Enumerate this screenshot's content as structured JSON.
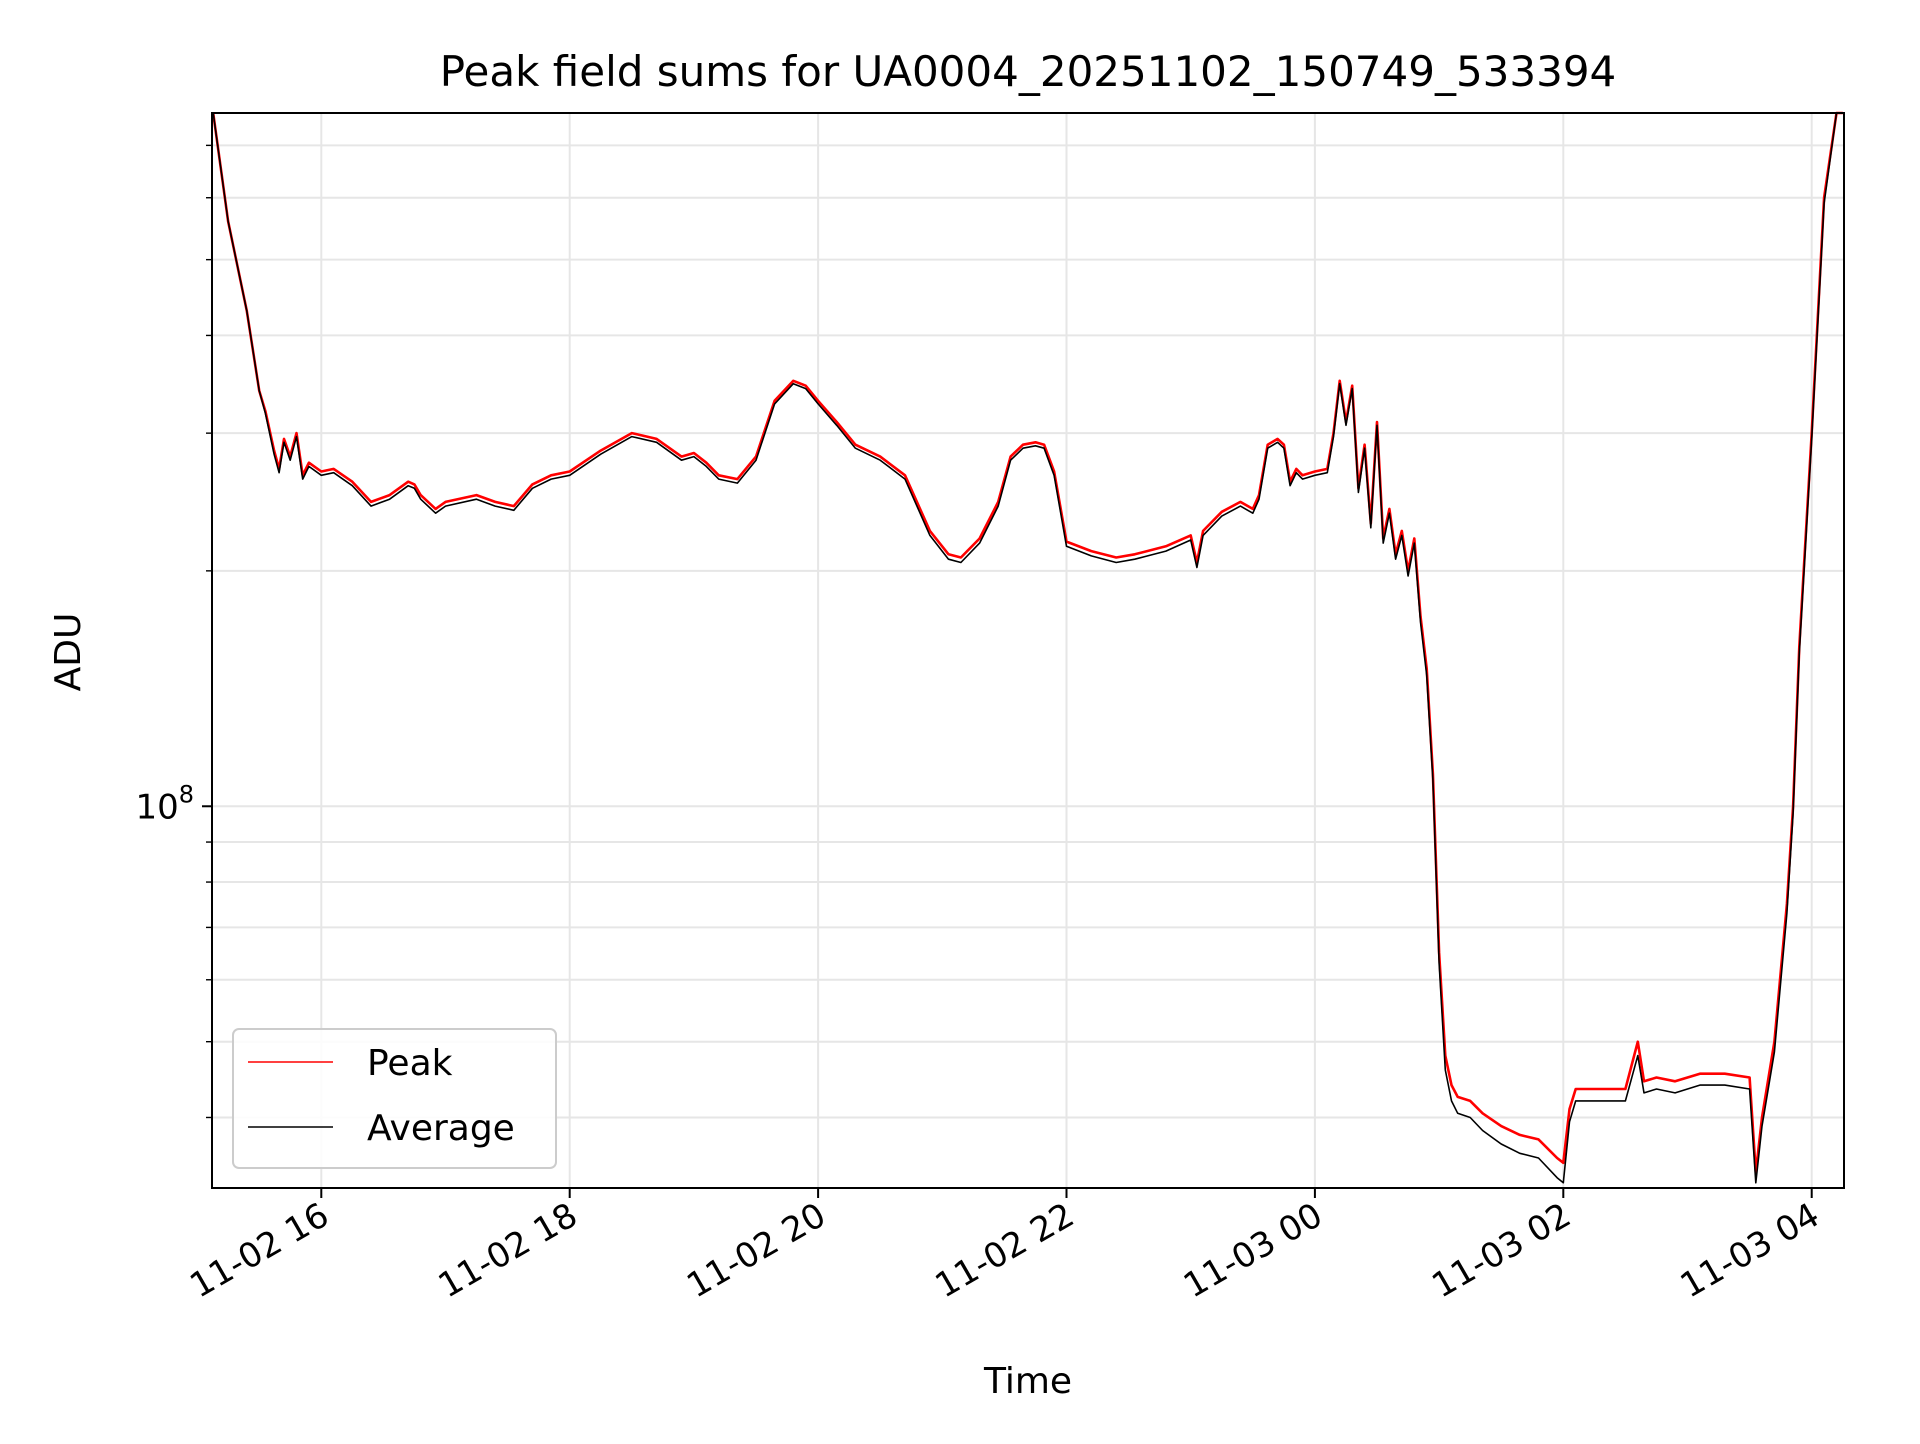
{
  "chart_data": {
    "type": "line",
    "title": "Peak field sums for UA0004_20251102_150749_533394",
    "xlabel": "Time",
    "ylabel": "ADU",
    "yscale": "log",
    "ylim": [
      32500000,
      770000000
    ],
    "xlim": [
      15.12,
      28.26
    ],
    "grid": true,
    "legend_position": "lower-left",
    "x_unit": "hours since 2025-11-02 00:00",
    "x_ticks": [
      {
        "value": 16,
        "label": "11-02 16"
      },
      {
        "value": 18,
        "label": "11-02 18"
      },
      {
        "value": 20,
        "label": "11-02 20"
      },
      {
        "value": 22,
        "label": "11-02 22"
      },
      {
        "value": 24,
        "label": "11-03 00"
      },
      {
        "value": 26,
        "label": "11-03 02"
      },
      {
        "value": 28,
        "label": "11-03 04"
      }
    ],
    "y_tick_labels": [
      {
        "value": 100000000,
        "base": "10",
        "exp": "8"
      }
    ],
    "x": [
      15.13,
      15.25,
      15.4,
      15.5,
      15.55,
      15.62,
      15.66,
      15.7,
      15.75,
      15.8,
      15.85,
      15.9,
      16.0,
      16.1,
      16.25,
      16.4,
      16.55,
      16.7,
      16.75,
      16.8,
      16.92,
      17.0,
      17.25,
      17.4,
      17.55,
      17.7,
      17.85,
      18.0,
      18.25,
      18.5,
      18.7,
      18.9,
      19.0,
      19.1,
      19.2,
      19.35,
      19.5,
      19.65,
      19.8,
      19.9,
      20.0,
      20.15,
      20.3,
      20.5,
      20.7,
      20.9,
      21.05,
      21.15,
      21.3,
      21.45,
      21.55,
      21.65,
      21.75,
      21.82,
      21.9,
      22.0,
      22.2,
      22.4,
      22.55,
      22.8,
      23.0,
      23.05,
      23.1,
      23.25,
      23.4,
      23.5,
      23.55,
      23.62,
      23.7,
      23.75,
      23.8,
      23.85,
      23.9,
      24.0,
      24.1,
      24.15,
      24.2,
      24.25,
      24.3,
      24.35,
      24.4,
      24.45,
      24.5,
      24.55,
      24.6,
      24.65,
      24.7,
      24.75,
      24.8,
      24.85,
      24.9,
      24.95,
      25.0,
      25.05,
      25.1,
      25.15,
      25.25,
      25.35,
      25.5,
      25.65,
      25.8,
      25.95,
      26.0,
      26.05,
      26.1,
      26.3,
      26.5,
      26.6,
      26.65,
      26.75,
      26.9,
      27.1,
      27.3,
      27.5,
      27.55,
      27.6,
      27.7,
      27.8,
      27.85,
      27.9,
      28.0,
      28.1,
      28.2,
      28.25
    ],
    "series": [
      {
        "name": "Peak",
        "color": "#ff0000",
        "values": [
          770000000,
          560000000,
          430000000,
          340000000,
          320000000,
          285000000,
          270000000,
          295000000,
          280000000,
          300000000,
          265000000,
          275000000,
          268000000,
          270000000,
          260000000,
          245000000,
          250000000,
          260000000,
          258000000,
          250000000,
          240000000,
          245000000,
          250000000,
          245000000,
          242000000,
          258000000,
          265000000,
          268000000,
          285000000,
          300000000,
          295000000,
          280000000,
          283000000,
          275000000,
          265000000,
          262000000,
          280000000,
          330000000,
          350000000,
          345000000,
          330000000,
          310000000,
          290000000,
          280000000,
          265000000,
          225000000,
          210000000,
          208000000,
          220000000,
          245000000,
          280000000,
          290000000,
          292000000,
          290000000,
          268000000,
          218000000,
          212000000,
          208000000,
          210000000,
          215000000,
          222000000,
          205000000,
          225000000,
          238000000,
          245000000,
          240000000,
          250000000,
          290000000,
          295000000,
          290000000,
          260000000,
          270000000,
          265000000,
          268000000,
          270000000,
          300000000,
          350000000,
          310000000,
          345000000,
          255000000,
          290000000,
          230000000,
          310000000,
          220000000,
          240000000,
          210000000,
          225000000,
          200000000,
          220000000,
          175000000,
          150000000,
          110000000,
          65000000,
          48000000,
          44000000,
          42500000,
          42000000,
          40500000,
          39000000,
          38000000,
          37500000,
          35500000,
          35000000,
          41000000,
          43500000,
          43500000,
          43500000,
          50000000,
          44500000,
          45000000,
          44500000,
          45500000,
          45500000,
          45000000,
          34000000,
          40000000,
          50000000,
          75000000,
          100000000,
          160000000,
          300000000,
          600000000,
          770000000,
          770000000
        ]
      },
      {
        "name": "Average",
        "color": "#000000",
        "values": [
          770000000,
          560000000,
          430000000,
          340000000,
          318000000,
          282000000,
          267000000,
          292000000,
          277000000,
          297000000,
          262000000,
          272000000,
          265000000,
          267000000,
          257000000,
          242000000,
          247000000,
          257000000,
          255000000,
          247000000,
          237000000,
          242000000,
          247000000,
          242000000,
          239000000,
          255000000,
          262000000,
          265000000,
          282000000,
          297000000,
          292000000,
          277000000,
          280000000,
          272000000,
          262000000,
          259000000,
          277000000,
          327000000,
          347000000,
          342000000,
          327000000,
          307000000,
          287000000,
          277000000,
          262000000,
          222000000,
          207000000,
          205000000,
          217000000,
          242000000,
          277000000,
          287000000,
          289000000,
          287000000,
          265000000,
          215000000,
          209000000,
          205000000,
          207000000,
          212000000,
          219000000,
          202000000,
          222000000,
          235000000,
          242000000,
          237000000,
          247000000,
          287000000,
          292000000,
          287000000,
          257000000,
          267000000,
          262000000,
          265000000,
          267000000,
          297000000,
          347000000,
          307000000,
          342000000,
          252000000,
          287000000,
          227000000,
          307000000,
          217000000,
          237000000,
          207000000,
          222000000,
          197000000,
          217000000,
          172000000,
          147000000,
          108000000,
          63000000,
          46000000,
          42000000,
          40500000,
          40000000,
          38500000,
          37000000,
          36000000,
          35500000,
          33500000,
          33000000,
          39500000,
          42000000,
          42000000,
          42000000,
          48000000,
          43000000,
          43500000,
          43000000,
          44000000,
          44000000,
          43500000,
          33000000,
          39000000,
          48500000,
          73000000,
          98000000,
          157000000,
          295000000,
          590000000,
          770000000,
          770000000
        ]
      }
    ],
    "legend": [
      {
        "label": "Peak",
        "color": "#ff0000"
      },
      {
        "label": "Average",
        "color": "#000000"
      }
    ]
  }
}
